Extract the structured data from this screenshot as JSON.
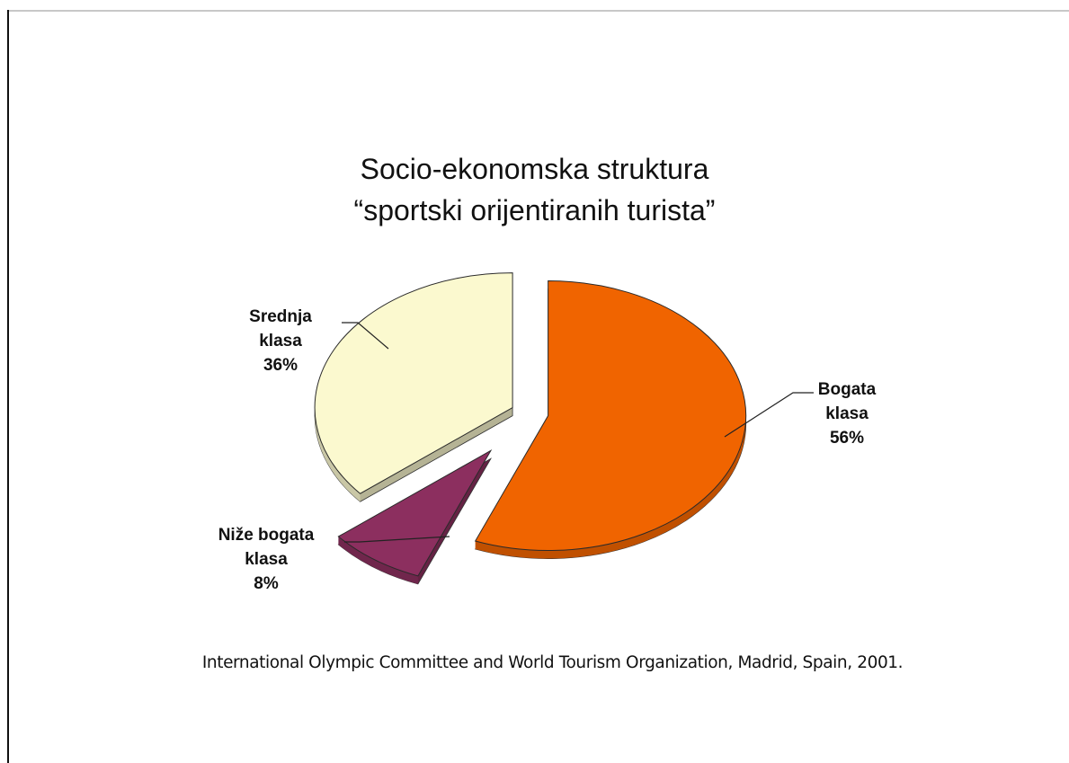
{
  "chart_data": {
    "type": "pie",
    "title": [
      "Socio-ekonomska struktura",
      "“sportski orijentiranih turista”"
    ],
    "slices": [
      {
        "label": [
          "Bogata",
          "klasa"
        ],
        "percent_label": "56%",
        "value": 56,
        "color": "#f06400"
      },
      {
        "label": [
          "Niže bogata",
          "klasa"
        ],
        "percent_label": "8%",
        "value": 8,
        "color": "#8c2f5f"
      },
      {
        "label": [
          "Srednja",
          "klasa"
        ],
        "percent_label": "36%",
        "value": 36,
        "color": "#fbf9cf"
      }
    ],
    "exploded": true,
    "three_d": true
  },
  "source": "International Olympic Committee and World Tourism Organization, Madrid, Spain, 2001."
}
